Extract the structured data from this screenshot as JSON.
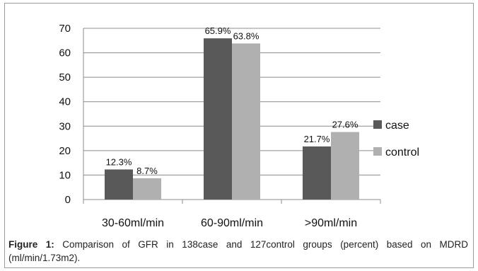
{
  "chart_data": {
    "type": "bar",
    "categories": [
      "30-60ml/min",
      "60-90ml/min",
      ">90ml/min"
    ],
    "series": [
      {
        "name": "case",
        "values": [
          12.3,
          65.9,
          21.7
        ],
        "labels": [
          "12.3%",
          "65.9%",
          "21.7%"
        ],
        "color": "#595959"
      },
      {
        "name": "control",
        "values": [
          8.7,
          63.8,
          27.6
        ],
        "labels": [
          "8.7%",
          "63.8%",
          "27.6%"
        ],
        "color": "#b0b0b0"
      }
    ],
    "ylim": [
      0,
      70
    ],
    "yticks": [
      0,
      10,
      20,
      30,
      40,
      50,
      60,
      70
    ],
    "grid": true,
    "legend_position": "right",
    "title": "",
    "xlabel": "",
    "ylabel": ""
  },
  "caption": {
    "label": "Figure 1:",
    "text": " Comparison of GFR in 138case and 127control groups (percent) based on MDRD (ml/min/1.73m2)."
  }
}
